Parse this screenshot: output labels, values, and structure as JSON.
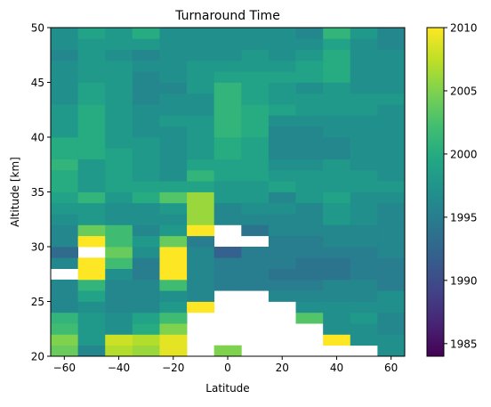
{
  "chart_data": {
    "type": "heatmap",
    "title": "Turnaround Time",
    "xlabel": "Latitude",
    "ylabel": "Altitude [km]",
    "xlim": [
      -65,
      65
    ],
    "ylim": [
      20,
      50
    ],
    "x_ticks": [
      -60,
      -40,
      -20,
      0,
      20,
      40,
      60
    ],
    "y_ticks": [
      20,
      25,
      30,
      35,
      40,
      45,
      50
    ],
    "x_edges": [
      -65,
      -55,
      -45,
      -35,
      -25,
      -15,
      -5,
      5,
      15,
      25,
      35,
      45,
      55,
      65
    ],
    "y_edges": [
      20,
      21,
      22,
      23,
      24,
      25,
      26,
      27,
      28,
      29,
      30,
      31,
      32,
      33,
      34,
      35,
      36,
      37,
      38,
      39,
      40,
      41,
      42,
      43,
      44,
      45,
      46,
      47,
      48,
      49,
      50
    ],
    "grid": false,
    "colorbar": {
      "vmin": 1984,
      "vmax": 2010,
      "ticks": [
        1985,
        1990,
        1995,
        2000,
        2005,
        2010
      ],
      "colormap": "viridis"
    },
    "z_rows_bottom_to_top": [
      [
        2004,
        1996,
        2007,
        2006,
        2009,
        null,
        2005,
        null,
        null,
        null,
        null,
        null,
        1997
      ],
      [
        2005,
        1998,
        2008,
        2007,
        2009,
        null,
        null,
        null,
        null,
        null,
        2010,
        1997,
        1997
      ],
      [
        2002,
        1998,
        1997,
        2000,
        2005,
        null,
        null,
        null,
        null,
        null,
        1997,
        1997,
        1996
      ],
      [
        2001,
        1998,
        1997,
        1999,
        2002,
        null,
        null,
        null,
        null,
        2003,
        1997,
        1998,
        1996
      ],
      [
        1996,
        1997,
        1996,
        1996,
        1998,
        2010,
        null,
        null,
        null,
        1997,
        1997,
        1997,
        1997
      ],
      [
        1996,
        1999,
        1996,
        1996,
        1997,
        1996,
        null,
        null,
        1996,
        1996,
        1996,
        1996,
        1997
      ],
      [
        1996,
        2001,
        1996,
        1996,
        2002,
        1996,
        1995,
        1995,
        1995,
        1995,
        1996,
        1996,
        1995
      ],
      [
        null,
        2010,
        1997,
        1995,
        2010,
        1996,
        1995,
        1995,
        1994,
        1994,
        1994,
        1995,
        1995
      ],
      [
        1996,
        2010,
        2002,
        1995,
        2010,
        1996,
        1995,
        1995,
        1995,
        1994,
        1994,
        1995,
        1995
      ],
      [
        1993,
        null,
        2004,
        1997,
        2010,
        1996,
        1992,
        1995,
        1995,
        1995,
        1995,
        1995,
        1996
      ],
      [
        1996,
        2010,
        2002,
        1998,
        2004,
        1995,
        null,
        null,
        1995,
        1995,
        1996,
        1996,
        1996
      ],
      [
        1996,
        2004,
        2002,
        1996,
        1998,
        2010,
        null,
        1994,
        1996,
        1996,
        1996,
        1996,
        1996
      ],
      [
        1997,
        1998,
        1997,
        1997,
        1997,
        2006,
        1996,
        1996,
        1996,
        1996,
        1998,
        1997,
        1996
      ],
      [
        1998,
        1998,
        1997,
        1997,
        1998,
        2006,
        1996,
        1997,
        1997,
        1996,
        1998,
        1997,
        1996
      ],
      [
        1999,
        2001,
        1998,
        2000,
        2003,
        2006,
        1998,
        1998,
        1996,
        1998,
        1999,
        1997,
        1997
      ],
      [
        2000,
        1998,
        1999,
        1999,
        1999,
        1999,
        1998,
        1998,
        1999,
        1998,
        1998,
        1998,
        1998
      ],
      [
        2000,
        1998,
        1999,
        1998,
        1997,
        2001,
        1999,
        1999,
        1998,
        1998,
        1998,
        1998,
        1997
      ],
      [
        2001,
        1998,
        1999,
        1998,
        1997,
        1999,
        1999,
        1999,
        1997,
        1997,
        1998,
        1997,
        1997
      ],
      [
        2000,
        2000,
        1999,
        1998,
        1997,
        1998,
        2000,
        1999,
        1996,
        1996,
        1996,
        1997,
        1997
      ],
      [
        2000,
        2000,
        1998,
        1998,
        1997,
        1998,
        2000,
        1999,
        1996,
        1996,
        1996,
        1997,
        1997
      ],
      [
        1998,
        2000,
        1998,
        1997,
        1997,
        1998,
        2001,
        2000,
        1996,
        1996,
        1997,
        1997,
        1997
      ],
      [
        1998,
        2000,
        1998,
        1997,
        1998,
        1998,
        2001,
        2000,
        1997,
        1997,
        1997,
        1997,
        1997
      ],
      [
        1998,
        2000,
        1998,
        1997,
        1997,
        1997,
        2001,
        2000,
        1999,
        1998,
        1998,
        1998,
        1997
      ],
      [
        1997,
        1999,
        1998,
        1996,
        1997,
        1997,
        2001,
        1999,
        1998,
        1998,
        1998,
        1998,
        1998
      ],
      [
        1997,
        1999,
        1998,
        1996,
        1996,
        1998,
        2001,
        1999,
        1998,
        1997,
        1998,
        1997,
        1997
      ],
      [
        1997,
        1998,
        1998,
        1996,
        1997,
        1998,
        1999,
        1999,
        1999,
        1999,
        2000,
        1997,
        1997
      ],
      [
        1997,
        1998,
        1998,
        1997,
        1997,
        1998,
        1998,
        1998,
        1998,
        1999,
        2000,
        1997,
        1997
      ],
      [
        1996,
        1998,
        1997,
        1996,
        1997,
        1997,
        1997,
        1998,
        1997,
        1998,
        2000,
        1997,
        1997
      ],
      [
        1997,
        1998,
        1998,
        1998,
        1997,
        1997,
        1997,
        1997,
        1997,
        1997,
        1999,
        1997,
        1996
      ],
      [
        1997,
        1999,
        1998,
        2000,
        1997,
        1997,
        1997,
        1997,
        1997,
        1996,
        2001,
        1998,
        1996
      ]
    ]
  }
}
